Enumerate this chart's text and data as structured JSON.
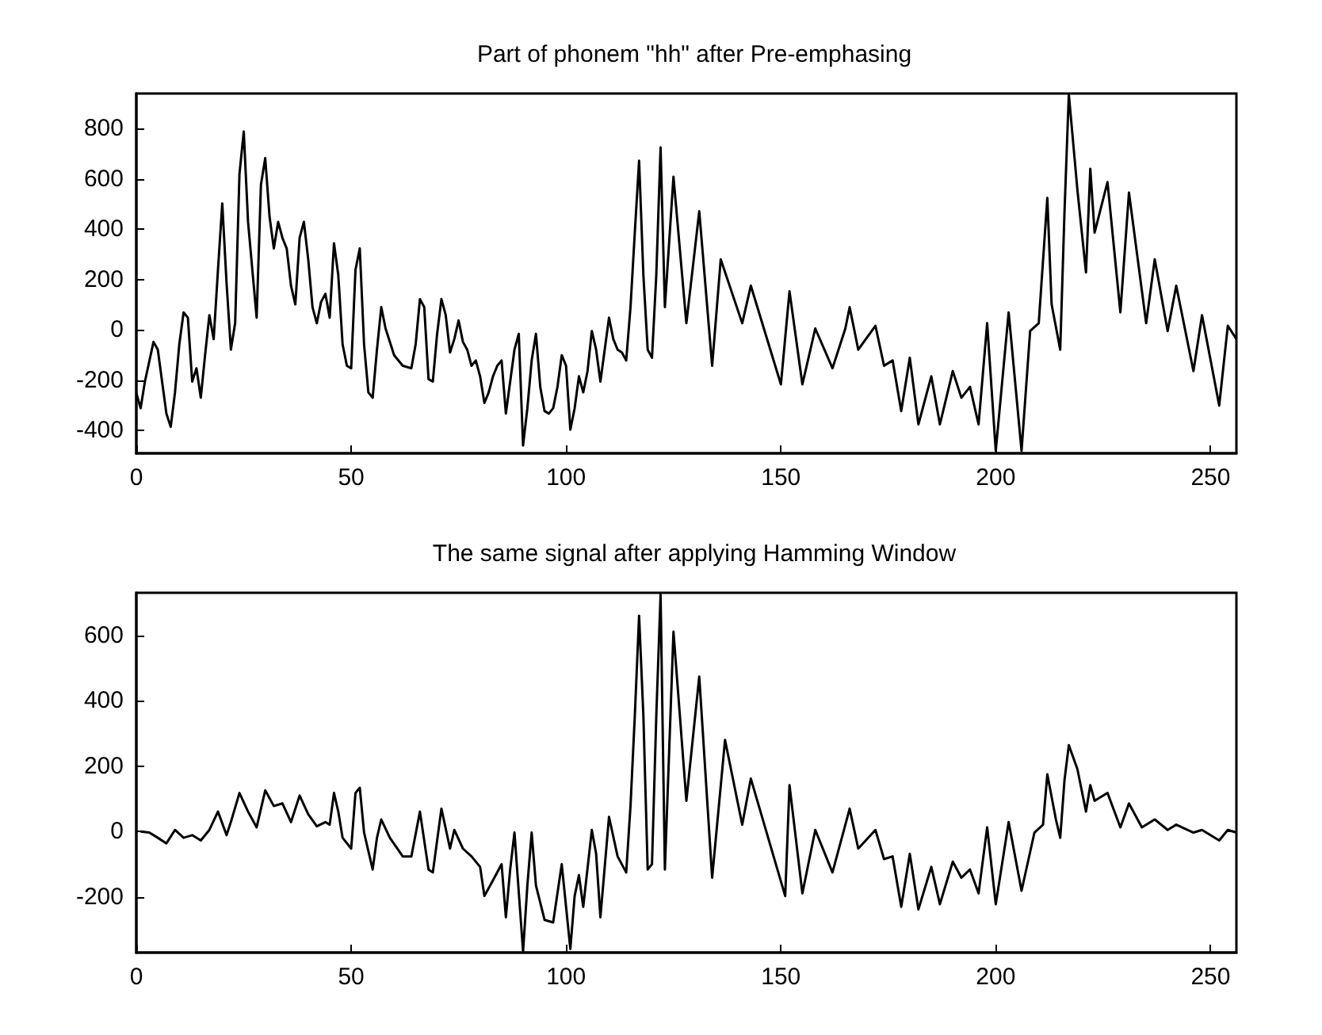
{
  "chart_data": [
    {
      "type": "line",
      "title": "Part of phonem \"hh\" after Pre-emphasing",
      "color": "#000000",
      "marker": "none",
      "x": [
        0,
        1,
        2,
        4,
        5,
        7,
        8,
        9,
        10,
        11,
        12,
        13,
        14,
        15,
        16,
        17,
        18,
        19,
        20,
        21,
        22,
        23,
        24,
        25,
        26,
        27,
        28,
        29,
        30,
        31,
        32,
        33,
        34,
        35,
        36,
        37,
        38,
        39,
        40,
        41,
        42,
        43,
        44,
        45,
        46,
        47,
        48,
        49,
        50,
        51,
        52,
        53,
        54,
        55,
        56,
        57,
        58,
        60,
        62,
        64,
        65,
        66,
        67,
        68,
        69,
        70,
        71,
        72,
        73,
        74,
        75,
        76,
        77,
        78,
        79,
        80,
        81,
        82,
        83,
        84,
        85,
        86,
        87,
        88,
        89,
        90,
        91,
        92,
        93,
        94,
        95,
        96,
        97,
        98,
        99,
        100,
        101,
        102,
        103,
        104,
        105,
        106,
        107,
        108,
        109,
        110,
        111,
        112,
        113,
        114,
        115,
        116,
        117,
        118,
        119,
        120,
        121,
        122,
        123,
        125,
        128,
        131,
        134,
        136,
        141,
        143,
        150,
        152,
        155,
        158,
        162,
        165,
        166,
        168,
        172,
        174,
        176,
        178,
        180,
        182,
        185,
        187,
        190,
        192,
        194,
        196,
        198,
        200,
        203,
        206,
        208,
        210,
        212,
        213,
        215,
        216,
        217,
        219,
        221,
        222,
        223,
        226,
        229,
        231,
        235,
        237,
        240,
        242,
        246,
        248,
        252,
        254,
        256
      ],
      "values": [
        -250,
        -311,
        -205,
        -47,
        -78,
        -332,
        -385,
        -248,
        -57,
        70,
        49,
        -205,
        -152,
        -269,
        -100,
        59,
        -36,
        239,
        503,
        186,
        -78,
        27,
        620,
        789,
        430,
        239,
        49,
        578,
        683,
        451,
        324,
        430,
        366,
        324,
        176,
        102,
        366,
        430,
        281,
        91,
        27,
        112,
        144,
        49,
        345,
        218,
        -57,
        -142,
        -152,
        239,
        324,
        -57,
        -248,
        -269,
        -78,
        91,
        6,
        -100,
        -142,
        -152,
        -57,
        123,
        91,
        -195,
        -205,
        -15,
        123,
        59,
        -89,
        -36,
        38,
        -47,
        -78,
        -142,
        -121,
        -184,
        -290,
        -248,
        -184,
        -142,
        -121,
        -332,
        -205,
        -78,
        -15,
        -459,
        -311,
        -121,
        -15,
        -226,
        -322,
        -332,
        -311,
        -226,
        -100,
        -142,
        -396,
        -311,
        -184,
        -248,
        -163,
        -4,
        -78,
        -205,
        -78,
        49,
        -36,
        -78,
        -89,
        -121,
        91,
        387,
        673,
        218,
        -78,
        -110,
        218,
        726,
        91,
        609,
        27,
        472,
        -142,
        281,
        27,
        176,
        -216,
        154,
        -216,
        6,
        -152,
        6,
        91,
        -78,
        17,
        -142,
        -121,
        -322,
        -110,
        -375,
        -184,
        -375,
        -163,
        -269,
        -226,
        -375,
        27,
        -480,
        70,
        -480,
        -4,
        27,
        525,
        102,
        -78,
        472,
        937,
        557,
        229,
        641,
        387,
        588,
        70,
        546,
        27,
        281,
        -4,
        176,
        -163,
        59,
        -300,
        17,
        -36
      ],
      "xlim": [
        0,
        256
      ],
      "ylim": [
        -490,
        940
      ],
      "xticks": [
        0,
        50,
        100,
        150,
        200,
        250
      ],
      "yticks": [
        -400,
        -200,
        0,
        200,
        400,
        600,
        800
      ]
    },
    {
      "type": "line",
      "title": "The same signal after applying Hamming Window",
      "color": "#000000",
      "marker": "none",
      "x": [
        1,
        3,
        5,
        7,
        9,
        11,
        13,
        15,
        17,
        19,
        21,
        22,
        24,
        26,
        28,
        30,
        32,
        34,
        36,
        38,
        40,
        42,
        44,
        45,
        46,
        47,
        48,
        50,
        51,
        52,
        53,
        55,
        56,
        57,
        59,
        62,
        64,
        66,
        68,
        69,
        71,
        73,
        74,
        76,
        78,
        80,
        81,
        83,
        85,
        86,
        87,
        88,
        90,
        91,
        92,
        93,
        95,
        97,
        99,
        101,
        102,
        103,
        104,
        106,
        107,
        108,
        110,
        112,
        114,
        115,
        116,
        117,
        118,
        119,
        120,
        121,
        122,
        123,
        125,
        128,
        131,
        134,
        137,
        141,
        143,
        151,
        152,
        155,
        158,
        162,
        165,
        166,
        168,
        172,
        174,
        176,
        178,
        180,
        182,
        185,
        187,
        190,
        192,
        194,
        196,
        198,
        200,
        203,
        206,
        209,
        211,
        212,
        214,
        215,
        216,
        217,
        219,
        221,
        222,
        223,
        226,
        229,
        231,
        234,
        237,
        240,
        242,
        246,
        248,
        252,
        254,
        256
      ],
      "values": [
        0,
        -3,
        -19,
        -36,
        5,
        -19,
        -11,
        -27,
        5,
        61,
        -11,
        29,
        118,
        61,
        13,
        126,
        78,
        86,
        29,
        110,
        53,
        16,
        29,
        21,
        118,
        61,
        -19,
        -52,
        118,
        134,
        -3,
        -116,
        -19,
        37,
        -19,
        -76,
        -76,
        61,
        -116,
        -125,
        70,
        -52,
        5,
        -52,
        -76,
        -108,
        -197,
        -149,
        -100,
        -262,
        -116,
        -3,
        -367,
        -165,
        -3,
        -165,
        -270,
        -278,
        -100,
        -359,
        -197,
        -133,
        -230,
        5,
        -68,
        -262,
        45,
        -76,
        -125,
        78,
        353,
        660,
        353,
        -116,
        -100,
        353,
        725,
        -116,
        611,
        94,
        474,
        -141,
        280,
        21,
        162,
        -197,
        142,
        -189,
        5,
        -125,
        21,
        70,
        -52,
        5,
        -84,
        -76,
        -230,
        -68,
        -238,
        -108,
        -222,
        -92,
        -141,
        -116,
        -189,
        13,
        -222,
        29,
        -181,
        -3,
        21,
        175,
        37,
        -19,
        158,
        264,
        191,
        61,
        142,
        94,
        118,
        13,
        86,
        13,
        37,
        5,
        21,
        -3,
        5,
        -27,
        5,
        -3
      ],
      "xlim": [
        0,
        256
      ],
      "ylim": [
        -370,
        730
      ],
      "xticks": [
        0,
        50,
        100,
        150,
        200,
        250
      ],
      "yticks": [
        -200,
        0,
        200,
        400,
        600
      ]
    }
  ]
}
